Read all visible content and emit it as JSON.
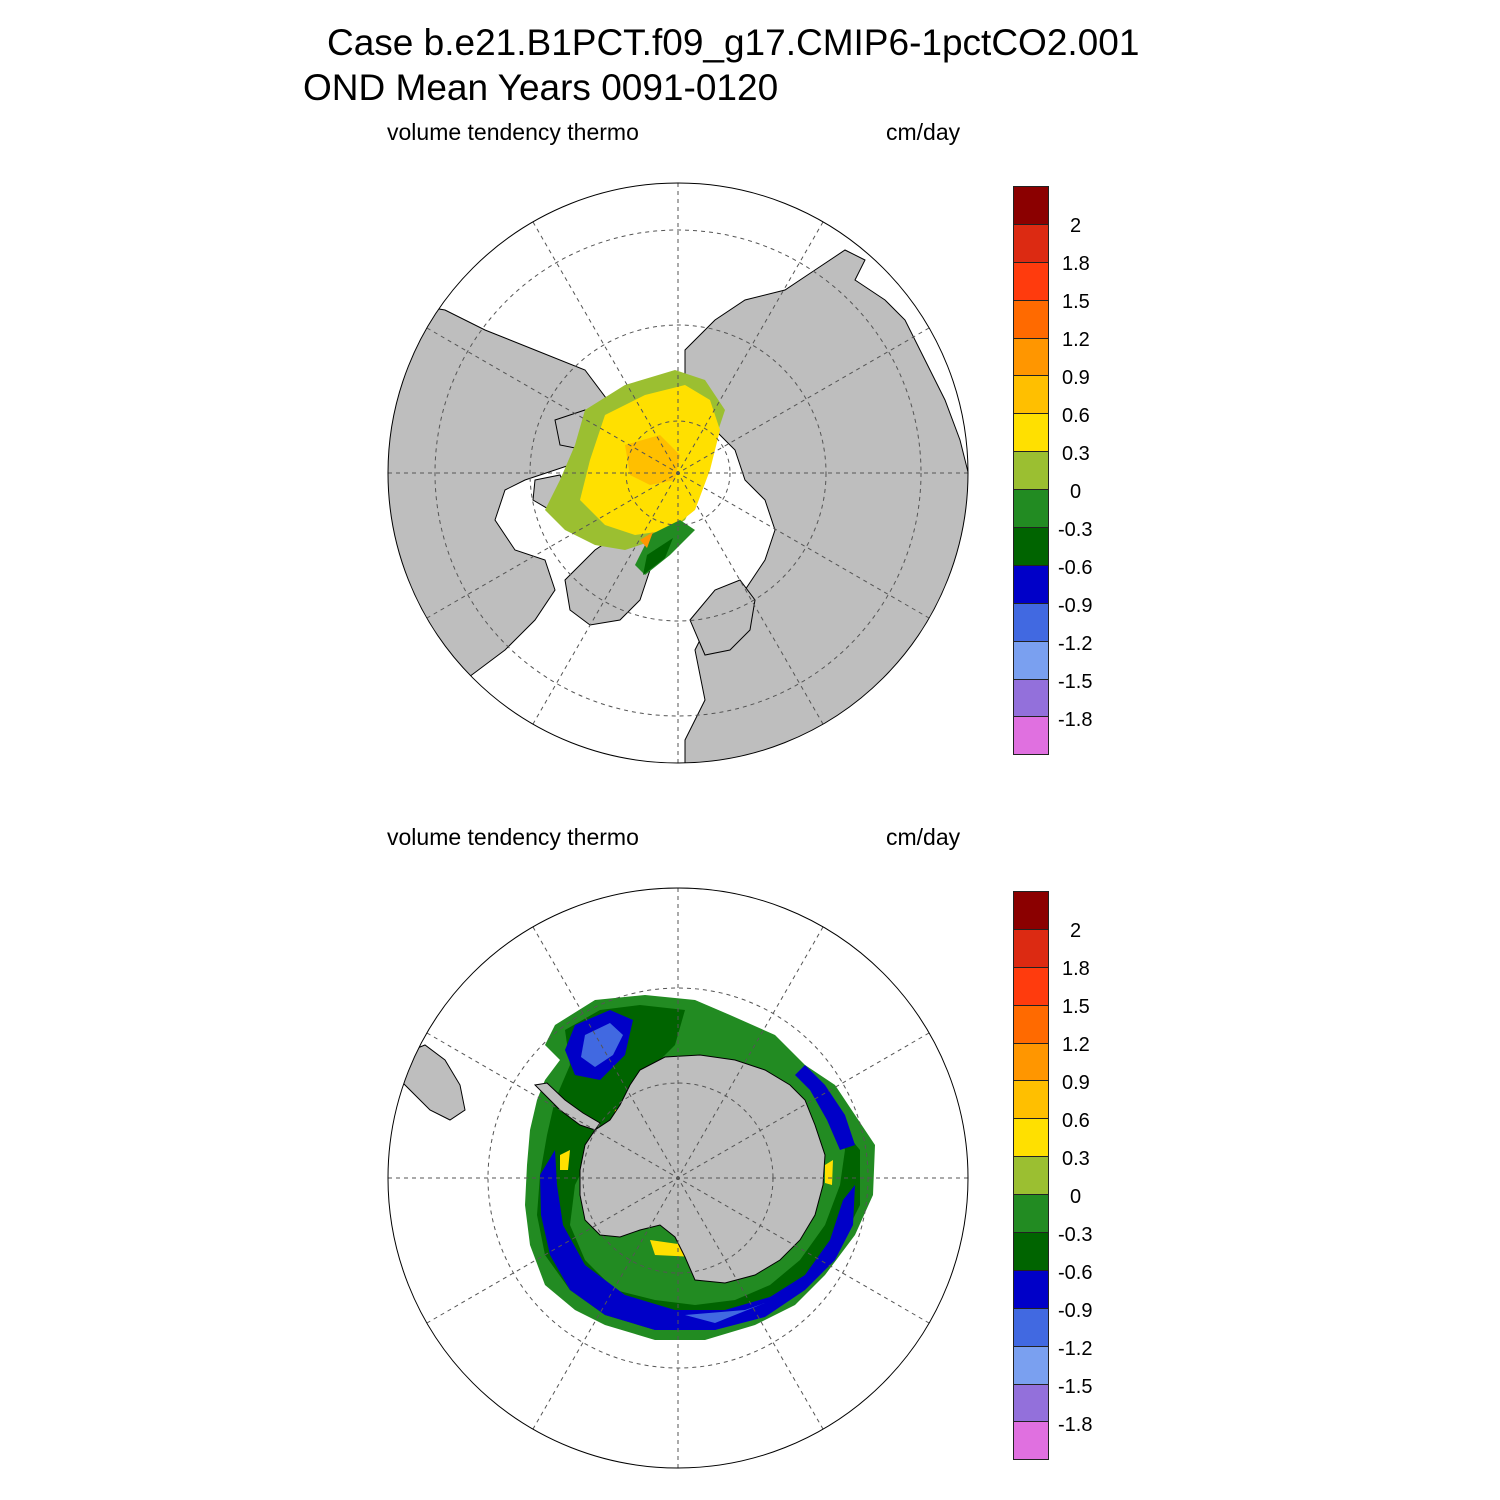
{
  "title": {
    "line1": "Case b.e21.B1PCT.f09_g17.CMIP6-1pctCO2.001",
    "line2": "OND Mean   Years 0091-0120"
  },
  "panels": [
    {
      "id": "arctic",
      "variable": "volume tendency thermo",
      "units": "cm/day"
    },
    {
      "id": "antarctic",
      "variable": "volume tendency thermo",
      "units": "cm/day"
    }
  ],
  "colorbar": {
    "ticks": [
      "2",
      "1.8",
      "1.5",
      "1.2",
      "0.9",
      "0.6",
      "0.3",
      "0",
      "-0.3",
      "-0.6",
      "-0.9",
      "-1.2",
      "-1.5",
      "-1.8"
    ],
    "colors": [
      "#8b0000",
      "#dc2a12",
      "#ff3b0d",
      "#ff6a00",
      "#ff9600",
      "#ffbf00",
      "#ffe000",
      "#9bbf31",
      "#228b22",
      "#006400",
      "#0000c8",
      "#4169e1",
      "#7aa0f0",
      "#9370db",
      "#e070e0"
    ]
  },
  "map_colors": {
    "land": "#bebebe",
    "ocean": "#ffffff",
    "grid": "#555555"
  }
}
